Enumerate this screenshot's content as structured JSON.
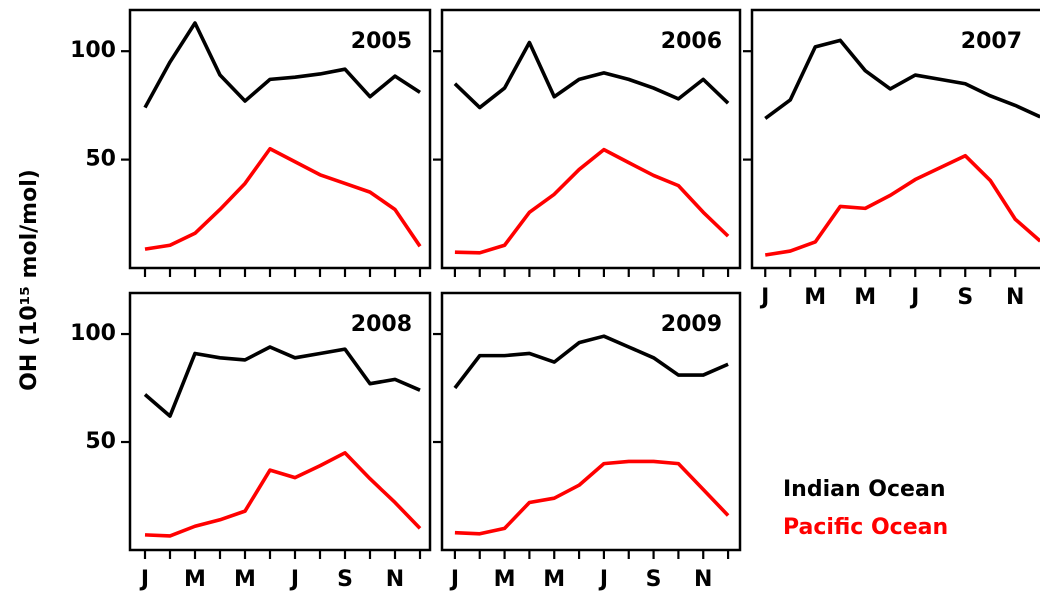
{
  "ylabel": "OH (10¹⁵ mol/mol)",
  "chart_data": [
    {
      "type": "line",
      "title": "2005",
      "x": [
        1,
        2,
        3,
        4,
        5,
        6,
        7,
        8,
        9,
        10,
        11,
        12
      ],
      "series": [
        {
          "name": "Indian Ocean",
          "color": "#000000",
          "values": [
            74,
            95,
            113,
            89,
            77,
            87,
            88,
            89.5,
            91.7,
            79,
            88.5,
            81
          ]
        },
        {
          "name": "Pacific Ocean",
          "color": "#ff0000",
          "values": [
            8.7,
            10.5,
            16,
            27,
            39,
            55,
            49,
            43,
            39,
            35,
            27,
            10
          ]
        }
      ],
      "xlim": [
        0.4,
        12.4
      ],
      "xticks": [
        1,
        2,
        3,
        4,
        5,
        6,
        7,
        8,
        9,
        10,
        11,
        12
      ],
      "ylim": [
        0,
        119
      ],
      "yticks": [
        50,
        100
      ]
    },
    {
      "type": "line",
      "title": "2006",
      "x": [
        1,
        2,
        3,
        4,
        5,
        6,
        7,
        8,
        9,
        10,
        11,
        12
      ],
      "series": [
        {
          "name": "Indian Ocean",
          "color": "#000000",
          "values": [
            85,
            74,
            83,
            104,
            79,
            87,
            90,
            87,
            83,
            78,
            87,
            76
          ]
        },
        {
          "name": "Pacific Ocean",
          "color": "#ff0000",
          "values": [
            7.3,
            7,
            10.5,
            25.7,
            34,
            45.4,
            54.6,
            48.6,
            42.7,
            38,
            25.7,
            14.7
          ]
        }
      ],
      "xlim": [
        0.48,
        12.48
      ],
      "xticks": [
        1,
        2,
        3,
        4,
        5,
        6,
        7,
        8,
        9,
        10,
        11,
        12
      ],
      "ylim": [
        0,
        119
      ],
      "yticks": [
        50,
        100
      ]
    },
    {
      "type": "line",
      "title": "2007",
      "x": [
        1,
        2,
        3,
        4,
        5,
        6,
        7,
        8,
        9,
        10,
        11,
        12
      ],
      "series": [
        {
          "name": "Indian Ocean",
          "color": "#000000",
          "values": [
            69,
            77.5,
            102,
            105,
            91,
            82.6,
            89,
            87,
            85,
            79.4,
            75,
            69.7
          ]
        },
        {
          "name": "Pacific Ocean",
          "color": "#ff0000",
          "values": [
            6,
            7.8,
            12,
            28.4,
            27.5,
            33.5,
            40.8,
            46.3,
            51.8,
            40.4,
            22.5,
            12.4
          ]
        }
      ],
      "xlim": [
        0.47,
        12.47
      ],
      "xticks": [
        {
          "value": 1,
          "label": "J"
        },
        {
          "value": 3,
          "label": "M"
        },
        {
          "value": 5,
          "label": "M"
        },
        {
          "value": 7,
          "label": "J"
        },
        {
          "value": 9,
          "label": "S"
        },
        {
          "value": 11,
          "label": "N"
        }
      ],
      "xminorticks": [
        2,
        4,
        6,
        8,
        10,
        12
      ],
      "ylim": [
        0,
        119
      ],
      "yticks": [
        50,
        100
      ]
    },
    {
      "type": "line",
      "title": "2008",
      "x": [
        1,
        2,
        3,
        4,
        5,
        6,
        7,
        8,
        9,
        10,
        11,
        12
      ],
      "series": [
        {
          "name": "Indian Ocean",
          "color": "#000000",
          "values": [
            72,
            62,
            91,
            89,
            88,
            94,
            89,
            91,
            93,
            77,
            79,
            74
          ]
        },
        {
          "name": "Pacific Ocean",
          "color": "#ff0000",
          "values": [
            7,
            6.5,
            11,
            14,
            18,
            37,
            33.5,
            39,
            45,
            33,
            22,
            10
          ]
        }
      ],
      "xlim": [
        0.4,
        12.4
      ],
      "xticks": [
        {
          "value": 1,
          "label": "J"
        },
        {
          "value": 3,
          "label": "M"
        },
        {
          "value": 5,
          "label": "M"
        },
        {
          "value": 7,
          "label": "J"
        },
        {
          "value": 9,
          "label": "S"
        },
        {
          "value": 11,
          "label": "N"
        }
      ],
      "xminorticks": [
        2,
        4,
        6,
        8,
        10,
        12
      ],
      "ylim": [
        0,
        119
      ],
      "yticks": [
        50,
        100
      ]
    },
    {
      "type": "line",
      "title": "2009",
      "x": [
        1,
        2,
        3,
        4,
        5,
        6,
        7,
        8,
        9,
        10,
        11,
        12
      ],
      "series": [
        {
          "name": "Indian Ocean",
          "color": "#000000",
          "values": [
            75,
            90,
            90,
            91,
            87,
            96,
            99,
            94,
            89,
            81,
            81,
            86
          ]
        },
        {
          "name": "Pacific Ocean",
          "color": "#ff0000",
          "values": [
            8,
            7.5,
            10,
            22,
            24,
            30,
            40,
            41,
            41,
            40,
            28,
            16
          ]
        }
      ],
      "xlim": [
        0.48,
        12.48
      ],
      "xticks": [
        {
          "value": 1,
          "label": "J"
        },
        {
          "value": 3,
          "label": "M"
        },
        {
          "value": 5,
          "label": "M"
        },
        {
          "value": 7,
          "label": "J"
        },
        {
          "value": 9,
          "label": "S"
        },
        {
          "value": 11,
          "label": "N"
        }
      ],
      "xminorticks": [
        2,
        4,
        6,
        8,
        10,
        12
      ],
      "ylim": [
        0,
        119
      ],
      "yticks": [
        50,
        100
      ]
    }
  ]
}
